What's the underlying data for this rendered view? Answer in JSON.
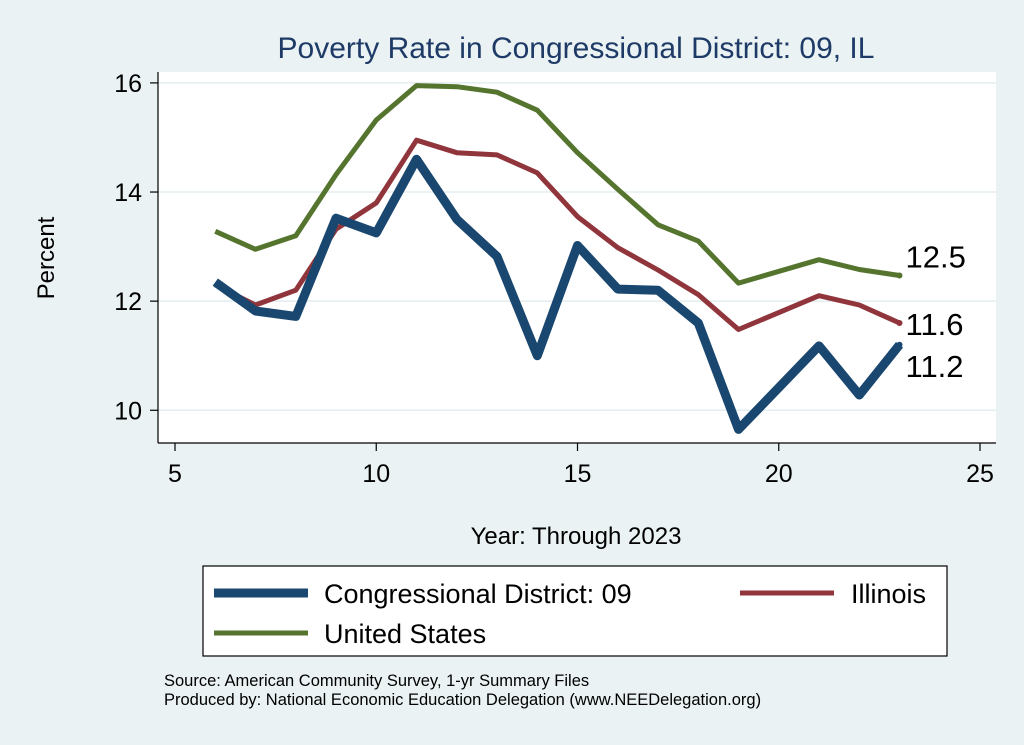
{
  "chart_data": {
    "type": "line",
    "title": "Poverty Rate in Congressional District:  09, IL",
    "xlabel": "Year: Through 2023",
    "ylabel": "Percent",
    "xlim": [
      5,
      25
    ],
    "ylim": [
      9.4,
      16.2
    ],
    "xticks": [
      5,
      10,
      15,
      20,
      25
    ],
    "yticks": [
      10,
      12,
      14,
      16
    ],
    "grid": true,
    "legend_position": "bottom",
    "series": [
      {
        "name": "Congressional District:  09",
        "color": "#1a476f",
        "x": [
          6,
          7,
          8,
          9,
          10,
          11,
          12,
          13,
          14,
          15,
          16,
          17,
          18,
          19,
          21,
          22,
          23
        ],
        "y": [
          12.35,
          11.82,
          11.72,
          13.52,
          13.25,
          14.6,
          13.5,
          12.82,
          11.0,
          13.02,
          12.22,
          12.2,
          11.6,
          9.65,
          11.18,
          10.28,
          11.2
        ],
        "end_label": "11.2"
      },
      {
        "name": "Illinois",
        "color": "#90353b",
        "x": [
          6,
          7,
          8,
          9,
          10,
          11,
          12,
          13,
          14,
          15,
          16,
          17,
          18,
          19,
          21,
          22,
          23
        ],
        "y": [
          12.3,
          11.93,
          12.2,
          13.32,
          13.8,
          14.95,
          14.72,
          14.68,
          14.35,
          13.55,
          12.98,
          12.57,
          12.12,
          11.48,
          12.1,
          11.93,
          11.6
        ],
        "end_label": "11.6"
      },
      {
        "name": "United States",
        "color": "#55752f",
        "x": [
          6,
          7,
          8,
          9,
          10,
          11,
          12,
          13,
          14,
          15,
          16,
          17,
          18,
          19,
          21,
          22,
          23
        ],
        "y": [
          13.28,
          12.95,
          13.2,
          14.32,
          15.32,
          15.95,
          15.93,
          15.83,
          15.5,
          14.72,
          14.05,
          13.4,
          13.1,
          12.33,
          12.76,
          12.58,
          12.47
        ],
        "end_label": "12.5"
      }
    ]
  },
  "source_line": "Source: American Community Survey, 1-yr Summary Files",
  "produced_line": "Produced by: National Economic Education Delegation (www.NEEDelegation.org)"
}
